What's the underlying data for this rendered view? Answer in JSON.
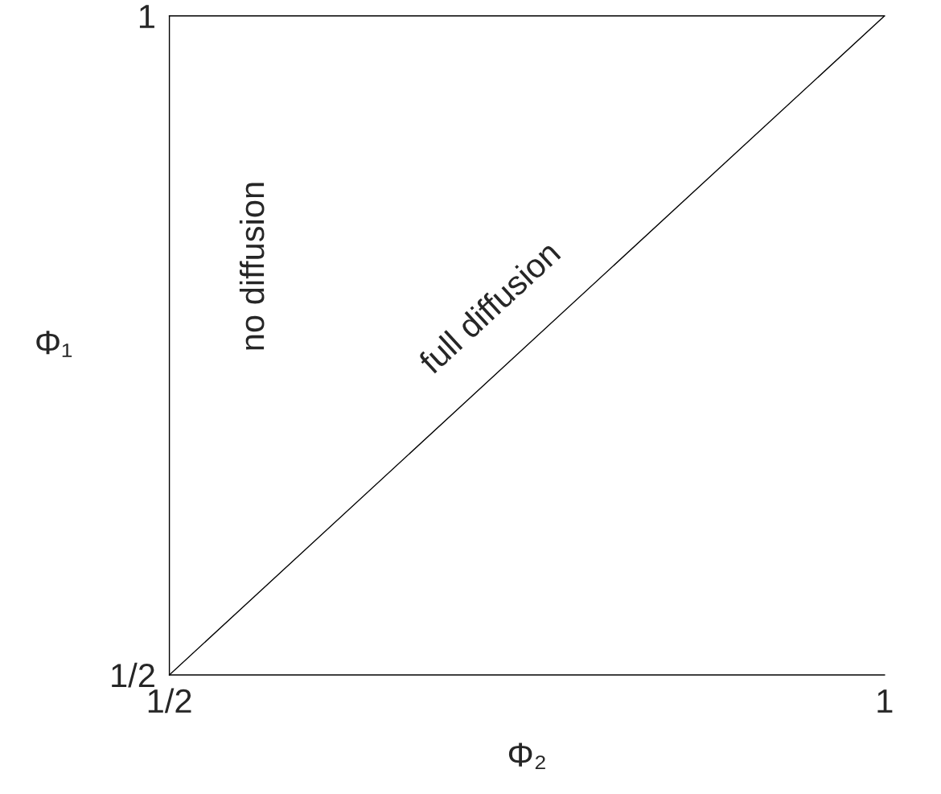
{
  "chart_data": {
    "type": "line",
    "xlabel": "Φ₂",
    "ylabel": "Φ₁",
    "x": [
      0.5,
      1
    ],
    "series": [
      {
        "color": "#000000",
        "values": [
          0.5,
          1
        ]
      }
    ],
    "xlim": [
      0.5,
      1
    ],
    "ylim": [
      0.5,
      1
    ],
    "xticks": [
      {
        "value": 0.5,
        "label": "1/2"
      },
      {
        "value": 1,
        "label": "1"
      }
    ],
    "yticks": [
      {
        "value": 0.5,
        "label": "1/2"
      },
      {
        "value": 1,
        "label": "1"
      }
    ],
    "annotations": [
      "no diffusion",
      {
        "text": "full diffusion",
        "x": 0.75,
        "y": 0.75
      }
    ],
    "grid": false,
    "marker": "none",
    "line_style": "solid"
  }
}
